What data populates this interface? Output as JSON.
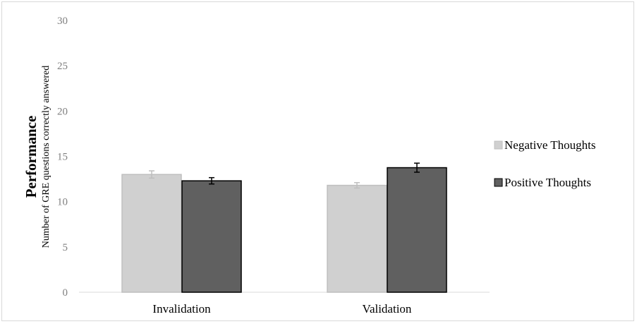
{
  "chart_data": {
    "type": "bar",
    "categories": [
      "Invalidation",
      "Validation"
    ],
    "series": [
      {
        "name": "Negative Thoughts",
        "values": [
          13.0,
          11.8
        ],
        "errors": [
          0.4,
          0.3
        ],
        "color": "#d0d0d0",
        "edge": "#bfbfbf",
        "error_color": "#bfbfbf"
      },
      {
        "name": "Positive Thoughts",
        "values": [
          12.3,
          13.75
        ],
        "errors": [
          0.35,
          0.5
        ],
        "color": "#606060",
        "edge": "#000000",
        "error_color": "#000000"
      }
    ],
    "ylabel": "Performance",
    "ylabel_sub": "Number of GRE questions correctly answered",
    "xlabel": "",
    "ylim": [
      0,
      30
    ],
    "yticks": [
      0,
      5,
      10,
      15,
      20,
      25,
      30
    ],
    "grid": false,
    "legend_position": "right"
  }
}
